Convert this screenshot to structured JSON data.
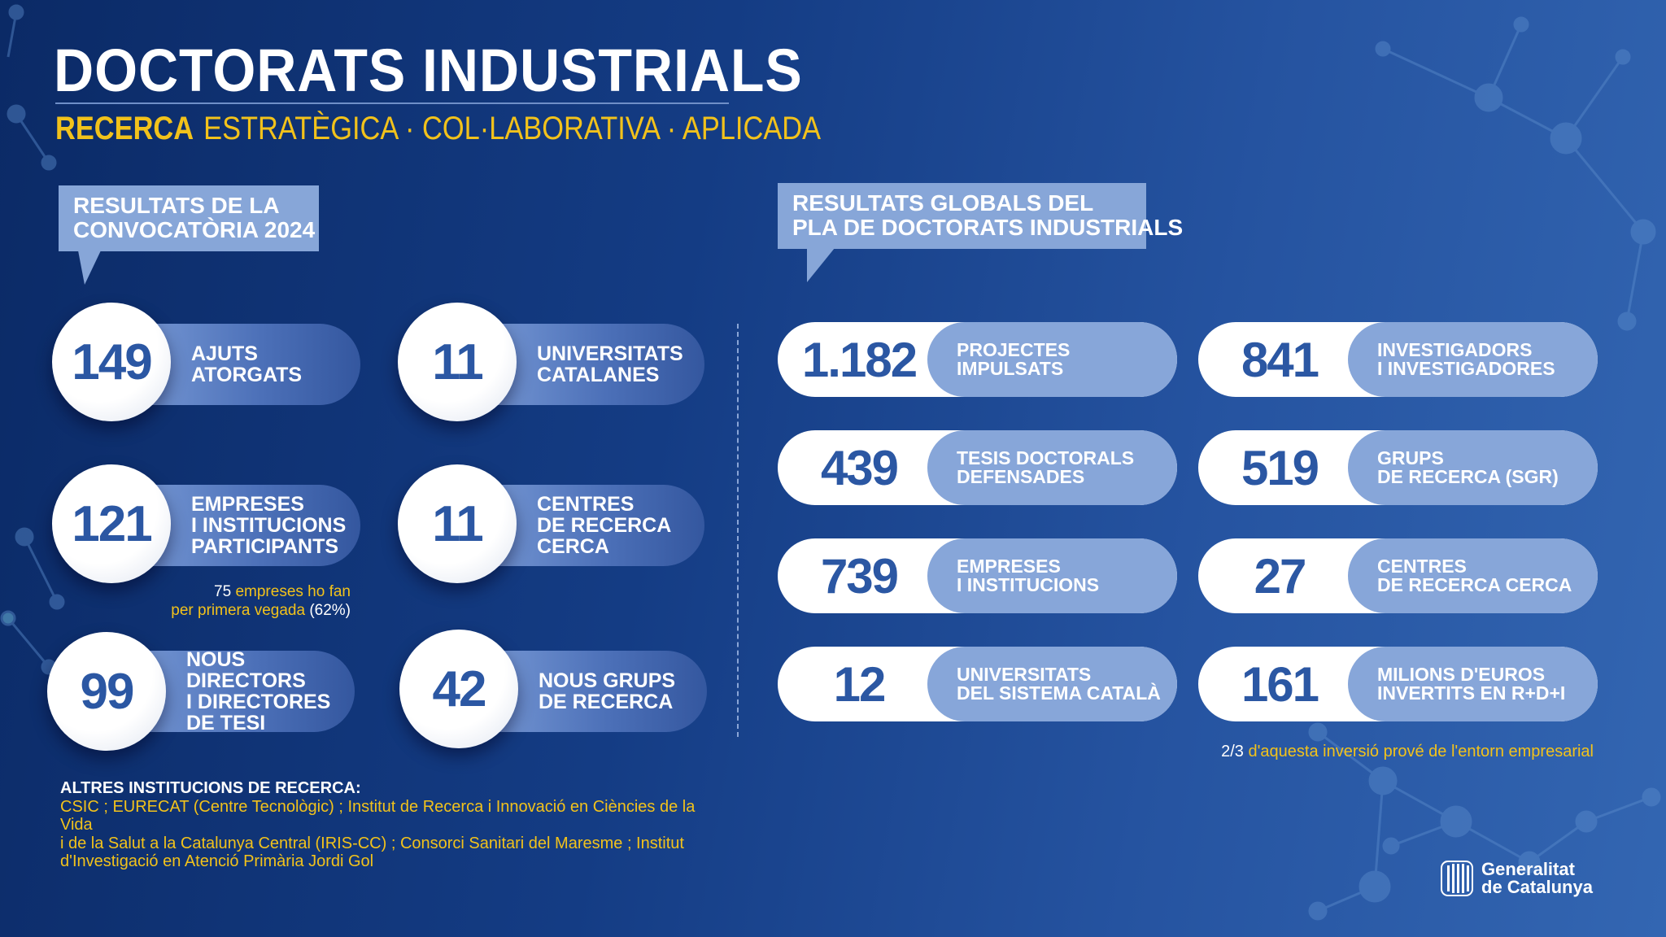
{
  "header": {
    "title": "DOCTORATS INDUSTRIALS",
    "subtitle_bold": "RECERCA",
    "subtitle_rest": "ESTRATÈGICA · COL·LABORATIVA · APLICADA"
  },
  "left": {
    "tag": [
      "RESULTATS DE LA",
      "CONVOCATÒRIA 2024"
    ],
    "stats": [
      {
        "value": "149",
        "label": [
          "AJUTS",
          "ATORGATS"
        ]
      },
      {
        "value": "11",
        "label": [
          "UNIVERSITATS",
          "CATALANES"
        ]
      },
      {
        "value": "121",
        "label": [
          "EMPRESES",
          "I INSTITUCIONS",
          "PARTICIPANTS"
        ]
      },
      {
        "value": "11",
        "label": [
          "CENTRES",
          "DE RECERCA",
          "CERCA"
        ]
      },
      {
        "value": "99",
        "label": [
          "NOUS DIRECTORS",
          "I DIRECTORES",
          "DE TESI"
        ]
      },
      {
        "value": "42",
        "label": [
          "NOUS GRUPS",
          "DE RECERCA"
        ]
      }
    ],
    "note": {
      "l1_num": "75",
      "l1_text": "empreses ho fan",
      "l2_text": "per primera vegada",
      "l2_pct": "(62%)"
    }
  },
  "right": {
    "tag": [
      "RESULTATS GLOBALS DEL",
      "PLA DE DOCTORATS INDUSTRIALS"
    ],
    "stats": [
      {
        "value": "1.182",
        "label": [
          "PROJECTES",
          "IMPULSATS"
        ]
      },
      {
        "value": "841",
        "label": [
          "INVESTIGADORS",
          "I INVESTIGADORES"
        ]
      },
      {
        "value": "439",
        "label": [
          "TESIS DOCTORALS",
          "DEFENSADES"
        ]
      },
      {
        "value": "519",
        "label": [
          "GRUPS",
          "DE RECERCA (SGR)"
        ]
      },
      {
        "value": "739",
        "label": [
          "EMPRESES",
          "I INSTITUCIONS"
        ]
      },
      {
        "value": "27",
        "label": [
          "CENTRES",
          "DE RECERCA CERCA"
        ]
      },
      {
        "value": "12",
        "label": [
          "UNIVERSITATS",
          "DEL SISTEMA CATALÀ"
        ]
      },
      {
        "value": "161",
        "label": [
          "MILIONS D'EUROS",
          "INVERTITS EN R+D+I"
        ]
      }
    ],
    "note": {
      "frac": "2/3",
      "text": "d'aquesta inversió prové de l'entorn empresarial"
    }
  },
  "altres": {
    "heading": "ALTRES INSTITUCIONS DE RECERCA:",
    "lines": [
      "CSIC ; EURECAT (Centre Tecnològic) ; Institut de Recerca i Innovació en Ciències de la Vida",
      "i de la Salut a la Catalunya Central (IRIS-CC) ; Consorci Sanitari del Maresme ; Institut",
      "d'Investigació en Atenció Primària Jordi Gol"
    ]
  },
  "logo": {
    "line1": "Generalitat",
    "line2": "de Catalunya"
  },
  "colors": {
    "accent": "#f2c21b",
    "number": "#2b57a3",
    "pill": "#87a6d9"
  }
}
